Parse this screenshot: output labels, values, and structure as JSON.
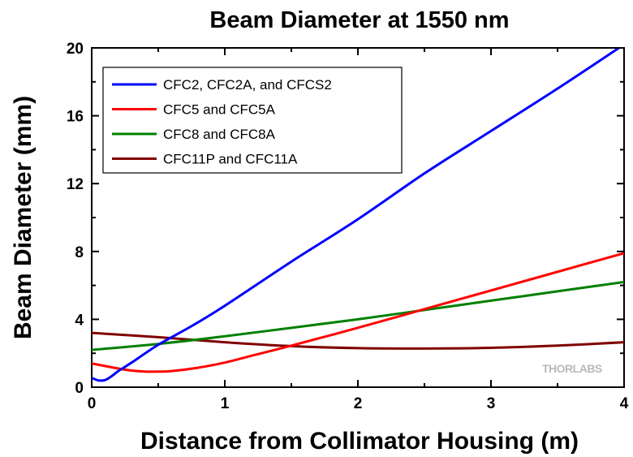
{
  "chart_data": {
    "type": "line",
    "title": "Beam Diameter at 1550 nm",
    "xlabel": "Distance from Collimator Housing (m)",
    "ylabel": "Beam Diameter (mm)",
    "xlim": [
      0,
      4
    ],
    "ylim": [
      0,
      20
    ],
    "xticks": [
      "0",
      "1",
      "2",
      "3",
      "4"
    ],
    "yticks": [
      "0",
      "4",
      "8",
      "12",
      "16",
      "20"
    ],
    "grid": false,
    "legend_position": "top-left",
    "watermark": "THORLABS",
    "series": [
      {
        "name": "CFC2, CFC2A, and CFCS2",
        "color": "#0000ff",
        "x": [
          0,
          0.05,
          0.1,
          0.15,
          0.2,
          0.3,
          0.5,
          0.75,
          1.0,
          1.5,
          2.0,
          2.5,
          3.0,
          3.5,
          4.0
        ],
        "y": [
          0.55,
          0.4,
          0.42,
          0.65,
          0.95,
          1.45,
          2.5,
          3.6,
          4.8,
          7.4,
          9.9,
          12.6,
          15.1,
          17.6,
          20.2
        ]
      },
      {
        "name": "CFC5 and CFC5A",
        "color": "#ff0000",
        "x": [
          0,
          0.1,
          0.2,
          0.3,
          0.4,
          0.5,
          0.6,
          0.8,
          1.0,
          1.2,
          1.5,
          2.0,
          2.5,
          3.0,
          3.5,
          4.0
        ],
        "y": [
          1.4,
          1.25,
          1.1,
          0.98,
          0.92,
          0.92,
          0.95,
          1.15,
          1.45,
          1.85,
          2.45,
          3.5,
          4.6,
          5.7,
          6.8,
          7.9
        ]
      },
      {
        "name": "CFC8 and CFC8A",
        "color": "#008000",
        "x": [
          0,
          0.5,
          1.0,
          1.5,
          2.0,
          2.5,
          3.0,
          3.5,
          4.0
        ],
        "y": [
          2.2,
          2.55,
          3.0,
          3.5,
          4.0,
          4.55,
          5.1,
          5.65,
          6.2
        ]
      },
      {
        "name": "CFC11P and CFC11A",
        "color": "#800000",
        "x": [
          0,
          0.5,
          1.0,
          1.5,
          2.0,
          2.5,
          3.0,
          3.5,
          4.0
        ],
        "y": [
          3.2,
          2.95,
          2.65,
          2.42,
          2.3,
          2.28,
          2.32,
          2.45,
          2.65
        ]
      }
    ]
  }
}
